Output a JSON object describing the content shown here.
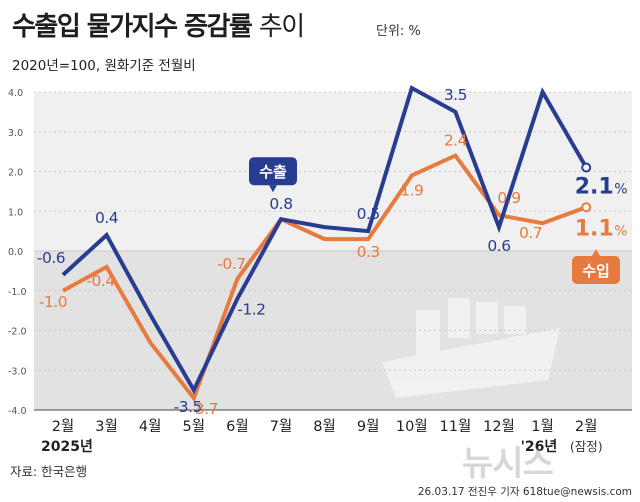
{
  "header": {
    "title_bold": "수출입 물가지수 증감률",
    "title_light": "추이",
    "unit": "단위: %",
    "subtitle": "2020년=100, 원화기준 전월비"
  },
  "footer": {
    "source": "자료: 한국은행",
    "credit": "26.03.17 전진우 기자 618tue@newsis.com",
    "watermark": "뉴시스"
  },
  "colors": {
    "export": "#283c90",
    "import": "#e77a3e",
    "background": "#f0f0f0",
    "lower_band": "#e2e2e2"
  },
  "chart_data": {
    "type": "line",
    "categories": [
      "2월",
      "3월",
      "4월",
      "5월",
      "6월",
      "7월",
      "8월",
      "9월",
      "10월",
      "11월",
      "12월",
      "1월",
      "2월"
    ],
    "year_labels": [
      {
        "text": "2025년",
        "category_index": 0
      },
      {
        "text": "'26년",
        "category_index": 11
      }
    ],
    "last_category_note": "(잠정)",
    "ylim": [
      -4.0,
      4.0
    ],
    "yticks": [
      "4.0",
      "3.0",
      "2.0",
      "1.0",
      "0.0",
      "-1.0",
      "-2.0",
      "-3.0",
      "-4.0"
    ],
    "grid": true,
    "series": [
      {
        "name": "수출",
        "color": "#283c90",
        "values": [
          -0.6,
          0.4,
          -1.6,
          -3.5,
          -1.2,
          0.8,
          0.6,
          0.5,
          4.1,
          3.5,
          0.6,
          4.0,
          2.1
        ],
        "labels": [
          "-0.6",
          "0.4",
          "",
          "-3.5",
          "-1.2",
          "0.8",
          "",
          "0.5",
          "4.1",
          "3.5",
          "0.6",
          "4.0",
          "2.1"
        ]
      },
      {
        "name": "수입",
        "color": "#e77a3e",
        "values": [
          -1.0,
          -0.4,
          -2.3,
          -3.7,
          -0.7,
          0.8,
          0.3,
          0.3,
          1.9,
          2.4,
          0.9,
          0.7,
          1.1
        ],
        "labels": [
          "-1.0",
          "-0.4",
          "",
          "-3.7",
          "-0.7",
          "",
          "",
          "0.3",
          "1.9",
          "2.4",
          "0.9",
          "0.7",
          "1.1"
        ]
      }
    ],
    "end_unit": "%"
  }
}
